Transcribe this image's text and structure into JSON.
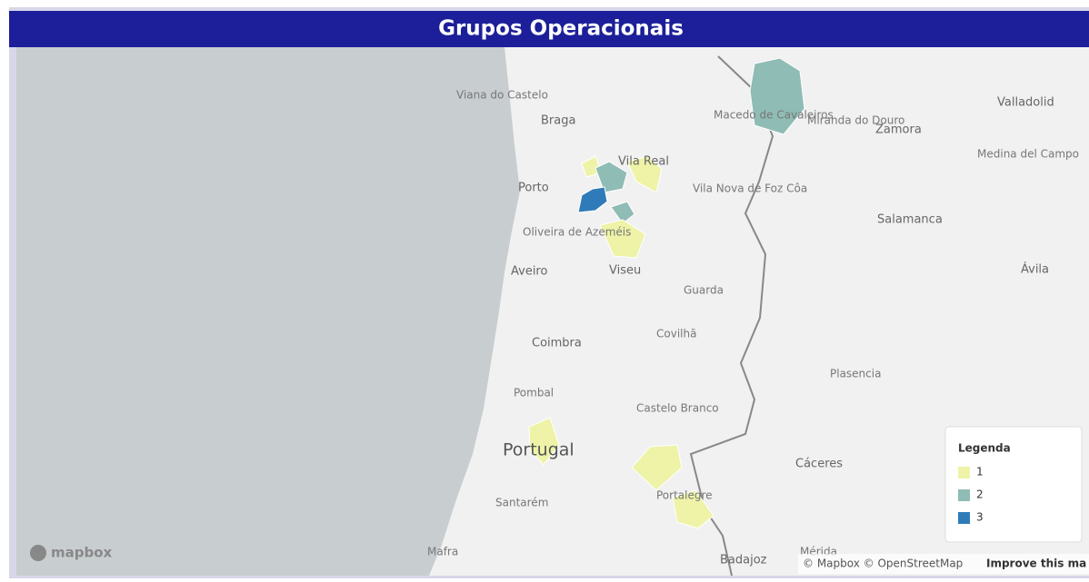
{
  "header": {
    "title": "Grupos Operacionais"
  },
  "places": [
    "Viana do Castelo",
    "Braga",
    "Macedo de Cavaleiros",
    "Miranda do Douro",
    "Zamora",
    "Valladolid",
    "Medina del Campo",
    "Vila Real",
    "Porto",
    "Vila Nova de Foz Côa",
    "Salamanca",
    "Oliveira de Azeméis",
    "Aveiro",
    "Viseu",
    "Ávila",
    "Guarda",
    "Coimbra",
    "Covilhã",
    "Plasencia",
    "Pombal",
    "Castelo Branco",
    "Portugal",
    "Cáceres",
    "Santarém",
    "Portalegre",
    "Mafra",
    "Badajoz",
    "Mérida"
  ],
  "legend": {
    "title": "Legenda",
    "items": [
      {
        "label": "1",
        "color": "#eef3a8"
      },
      {
        "label": "2",
        "color": "#8fbcb5"
      },
      {
        "label": "3",
        "color": "#2f7bba"
      }
    ]
  },
  "logo": "mapbox",
  "attribution": {
    "text": "© Mapbox © OpenStreetMap",
    "link": "Improve this ma"
  }
}
